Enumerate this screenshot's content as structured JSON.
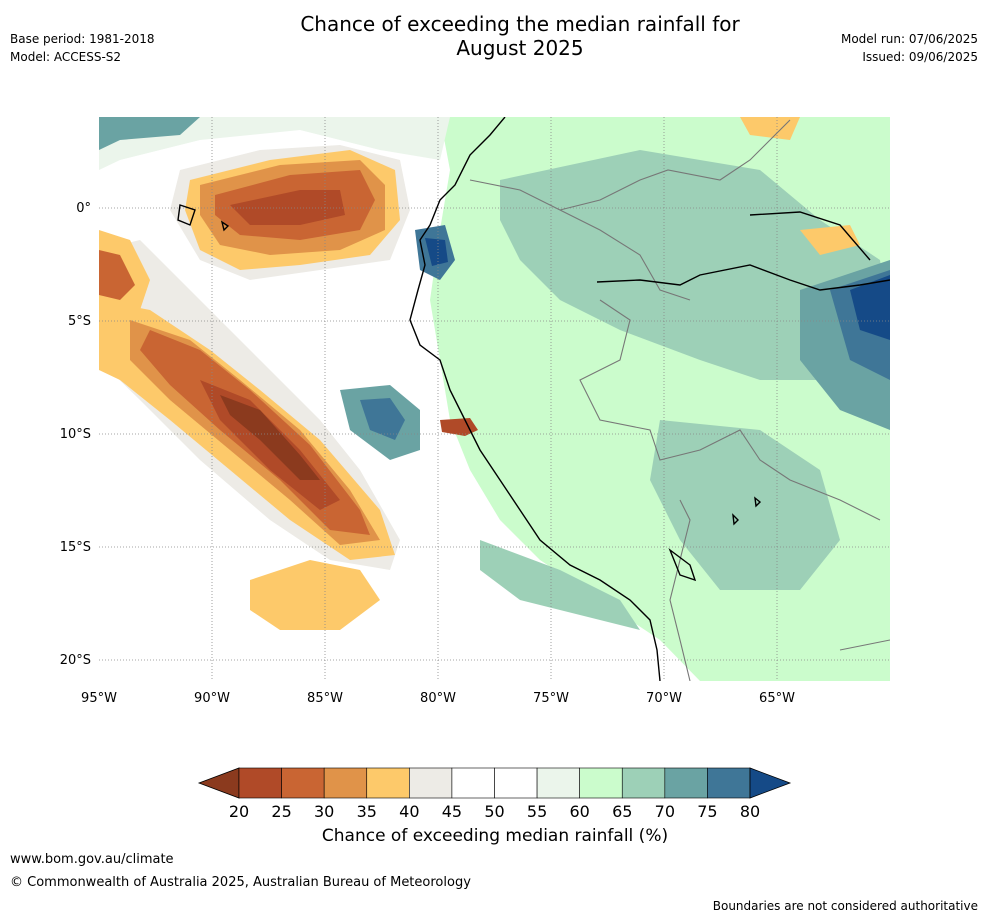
{
  "header": {
    "title_line1": "Chance of exceeding the median rainfall for",
    "title_line2": "August 2025",
    "base_period": "Base period: 1981-2018",
    "model": "Model: ACCESS-S2",
    "model_run": "Model run: 07/06/2025",
    "issued": "Issued: 09/06/2025"
  },
  "map": {
    "lon_ticks": [
      "95°W",
      "90°W",
      "85°W",
      "80°W",
      "75°W",
      "70°W",
      "65°W"
    ],
    "lat_ticks": [
      "0°",
      "5°S",
      "10°S",
      "15°S",
      "20°S"
    ]
  },
  "colorbar": {
    "title": "Chance of exceeding median rainfall (%)",
    "ticks": [
      "20",
      "25",
      "30",
      "35",
      "40",
      "45",
      "50",
      "55",
      "60",
      "65",
      "70",
      "75",
      "80"
    ],
    "colors": [
      "#8b3a1e",
      "#b04a28",
      "#c96533",
      "#e09349",
      "#fdc96a",
      "#edebe6",
      "#ffffff",
      "#ffffff",
      "#ebf5eb",
      "#cbfccc",
      "#9dd0b7",
      "#6aa3a3",
      "#3f7697",
      "#154a87"
    ]
  },
  "footer": {
    "url": "www.bom.gov.au/climate",
    "copyright": "© Commonwealth of Australia 2025, Australian Bureau of Meteorology",
    "note": "Boundaries are not considered authoritative"
  }
}
